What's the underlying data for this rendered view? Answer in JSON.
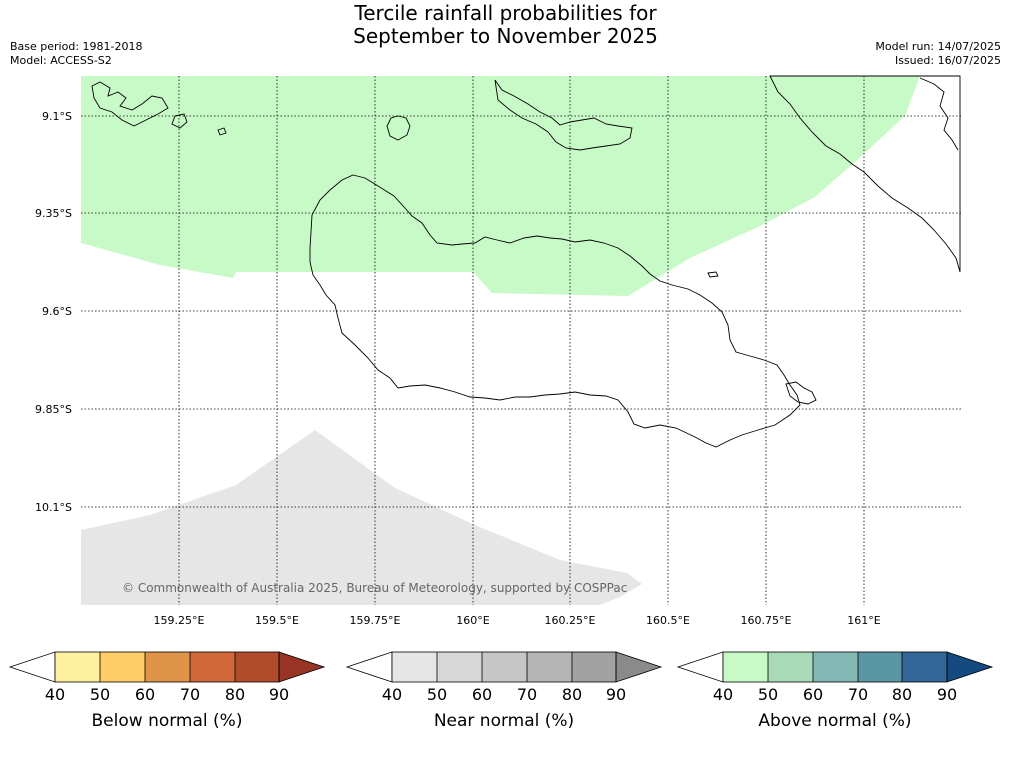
{
  "header": {
    "title_line1": "Tercile rainfall probabilities for",
    "title_line2": "September to November 2025",
    "base_period": "Base period: 1981-2018",
    "model": "Model: ACCESS-S2",
    "model_run": "Model run: 14/07/2025",
    "issued": "Issued: 16/07/2025"
  },
  "map": {
    "lat_labels": [
      "9.1°S",
      "9.35°S",
      "9.6°S",
      "9.85°S",
      "10.1°S"
    ],
    "lon_labels": [
      "159.25°E",
      "159.5°E",
      "159.75°E",
      "160°E",
      "160.25°E",
      "160.5°E",
      "160.75°E",
      "161°E"
    ],
    "copyright": "© Commonwealth of Australia 2025, Bureau of Meteorology, supported by COSPPac",
    "regions": [
      {
        "category": "above-normal",
        "probability_band": "40-50",
        "color": "#c8fac8"
      },
      {
        "category": "near-normal",
        "probability_band": "40-50",
        "color": "#e6e6e6"
      }
    ]
  },
  "colorbars": [
    {
      "caption": "Below normal (%)",
      "ticks": [
        "40",
        "50",
        "60",
        "70",
        "80",
        "90"
      ],
      "colors": [
        "#fff0a0",
        "#ffcc66",
        "#e09448",
        "#d06838",
        "#b04c2c",
        "#983424"
      ]
    },
    {
      "caption": "Near normal (%)",
      "ticks": [
        "40",
        "50",
        "60",
        "70",
        "80",
        "90"
      ],
      "colors": [
        "#e6e6e6",
        "#d7d7d7",
        "#c6c6c6",
        "#b4b4b4",
        "#a2a2a2",
        "#8a8a8a"
      ]
    },
    {
      "caption": "Above normal (%)",
      "ticks": [
        "40",
        "50",
        "60",
        "70",
        "80",
        "90"
      ],
      "colors": [
        "#c8fac8",
        "#a8dab8",
        "#84b8b4",
        "#5a96a4",
        "#336699",
        "#144a80"
      ]
    }
  ]
}
